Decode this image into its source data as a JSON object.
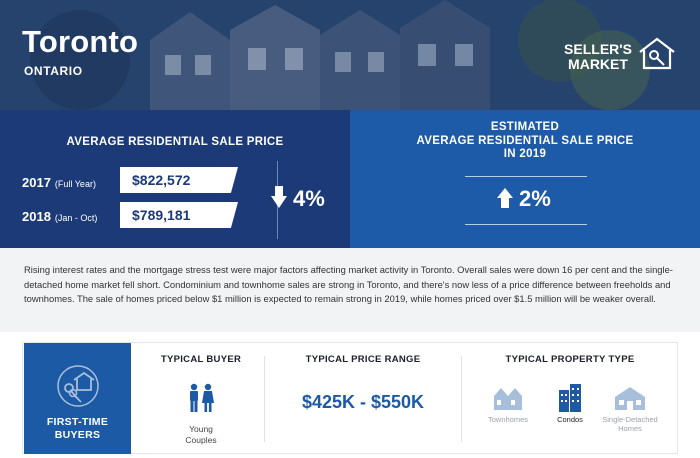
{
  "header": {
    "city": "Toronto",
    "province": "ONTARIO",
    "market_status": "SELLER'S MARKET",
    "market_icon": "house-key-icon"
  },
  "average_price": {
    "title": "AVERAGE RESIDENTIAL SALE PRICE",
    "rows": [
      {
        "year": "2017",
        "period": "(Full Year)",
        "price": "$822,572"
      },
      {
        "year": "2018",
        "period": "(Jan - Oct)",
        "price": "$789,181"
      }
    ],
    "change": "4%",
    "change_direction": "down"
  },
  "estimated": {
    "title_line1": "ESTIMATED",
    "title_line2": "AVERAGE RESIDENTIAL SALE PRICE",
    "title_line3": "IN 2019",
    "change": "2%",
    "change_direction": "up"
  },
  "summary": "Rising interest rates and the mortgage stress test were major factors affecting market activity in Toronto. Overall sales were down 16 per cent and the single-detached home market fell short. Condominium and townhome sales are strong in Toronto, and there's now less of a price difference between freeholds and townhomes. The sale of homes priced below $1 million is expected to remain strong in 2019, while homes priced over $1.5 million will be weaker overall.",
  "buyer": {
    "segment_line1": "FIRST-TIME",
    "segment_line2": "BUYERS",
    "typical_buyer_label": "TYPICAL BUYER",
    "typical_buyer_line1": "Young",
    "typical_buyer_line2": "Couples",
    "price_range_label": "TYPICAL PRICE RANGE",
    "price_range": "$425K - $550K",
    "property_type_label": "TYPICAL PROPERTY TYPE",
    "property_types": [
      {
        "label": "Townhomes",
        "active": false
      },
      {
        "label": "Condos",
        "active": true
      },
      {
        "label": "Single-Detached Homes",
        "active": false
      }
    ]
  },
  "colors": {
    "navy": "#1c3a78",
    "blue": "#1d5aa8",
    "accent_blue": "#1c5aa6",
    "light_icon": "#a8bfdc"
  }
}
